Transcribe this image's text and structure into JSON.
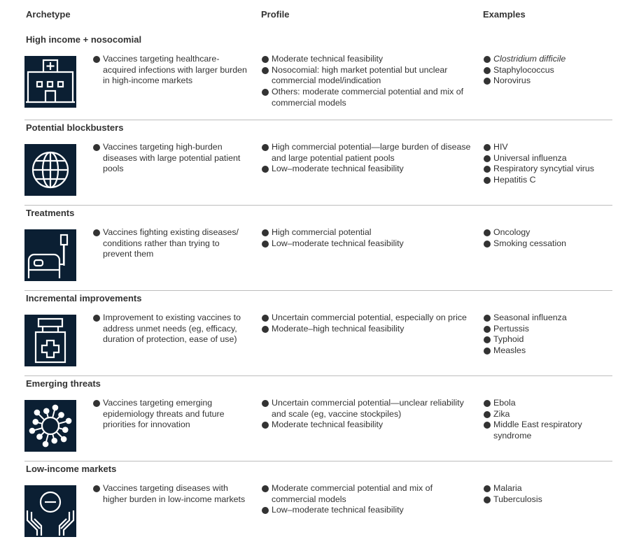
{
  "headers": {
    "archetype": "Archetype",
    "profile": "Profile",
    "examples": "Examples"
  },
  "rows": [
    {
      "title": "High income + nosocomial",
      "icon": "hospital-icon",
      "description": [
        "Vaccines targeting healthcare-acquired infections with larger burden in high-income markets"
      ],
      "profile": [
        "Moderate technical feasibility",
        "Nosocomial: high market potential but unclear commercial model/indication",
        "Others: moderate commercial potential and mix of commercial models"
      ],
      "examples": [
        "Clostridium difficile",
        "Staphylococcus",
        "Norovirus"
      ]
    },
    {
      "title": "Potential blockbusters",
      "icon": "globe-icon",
      "description": [
        "Vaccines targeting high-burden diseases with large potential patient pools"
      ],
      "profile": [
        "High commercial potential—large burden of disease and large potential patient pools",
        "Low–moderate technical feasibility"
      ],
      "examples": [
        "HIV",
        "Universal influenza",
        "Respiratory syncytial virus",
        "Hepatitis C"
      ]
    },
    {
      "title": "Treatments",
      "icon": "hospital-bed-icon",
      "description": [
        "Vaccines fighting existing diseases/ conditions rather than trying to prevent them"
      ],
      "profile": [
        "High commercial potential",
        "Low–moderate technical feasibility"
      ],
      "examples": [
        "Oncology",
        "Smoking cessation"
      ]
    },
    {
      "title": "Incremental improvements",
      "icon": "medicine-bottle-icon",
      "description": [
        "Improvement to existing vaccines to address unmet needs (eg, efficacy, duration of protection, ease of use)"
      ],
      "profile": [
        "Uncertain commercial potential, especially on price",
        "Moderate–high technical feasibility"
      ],
      "examples": [
        "Seasonal influenza",
        "Pertussis",
        "Typhoid",
        "Measles"
      ]
    },
    {
      "title": "Emerging threats",
      "icon": "virus-icon",
      "description": [
        "Vaccines targeting emerging epidemiology threats and future priorities for innovation"
      ],
      "profile": [
        "Uncertain commercial potential—unclear reliability and scale (eg, vaccine stockpiles)",
        "Moderate technical feasibility"
      ],
      "examples": [
        "Ebola",
        "Zika",
        "Middle East respiratory syndrome"
      ]
    },
    {
      "title": "Low-income markets",
      "icon": "hands-coin-icon",
      "description": [
        "Vaccines targeting diseases with higher burden in low-income markets"
      ],
      "profile": [
        "Moderate commercial potential and mix of commercial models",
        "Low–moderate technical feasibility"
      ],
      "examples": [
        "Malaria",
        "Tuberculosis"
      ]
    }
  ],
  "colors": {
    "icon_bg": "#0b1f33",
    "separator": "#bdbdbd"
  }
}
